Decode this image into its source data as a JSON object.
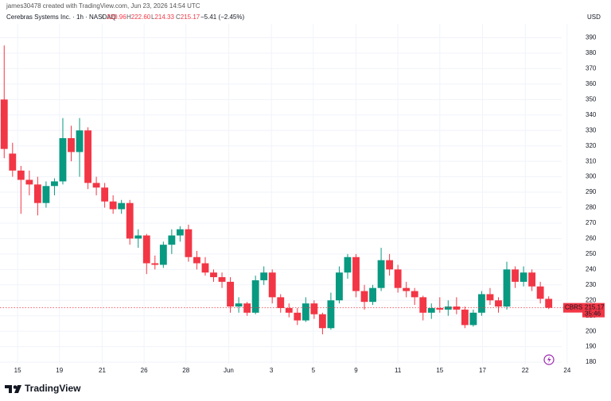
{
  "chart_data": {
    "type": "candlestick",
    "attribution": "james30478 created with TradingView.com, Jun 23, 2026 14:54 UTC",
    "instrument": "Cerebras Systems Inc. · 1h · NASDAQ",
    "ohlc_legend": [
      {
        "key": "O",
        "value": "220.96"
      },
      {
        "key": "H",
        "value": "222.60"
      },
      {
        "key": "L",
        "value": "214.33"
      },
      {
        "key": "C",
        "value": "215.17"
      }
    ],
    "change": "−5.41 (−2.45%)",
    "currency": "USD",
    "symbol_tag": "CBRS",
    "last_price": 215.17,
    "countdown": "35:46",
    "brand": "TradingView",
    "up_color": "#089981",
    "down_color": "#f23645",
    "grid": true,
    "open": [
      350,
      315,
      304,
      298,
      295,
      283,
      294,
      297,
      325,
      316,
      330,
      296,
      293,
      284,
      279,
      283,
      260,
      262,
      244,
      243,
      256,
      262,
      266,
      248,
      244,
      238,
      235,
      232,
      216,
      218,
      212,
      233,
      238,
      222,
      215,
      212,
      207,
      218,
      211,
      202,
      220,
      238,
      248,
      226,
      219,
      228,
      246,
      240,
      228,
      226,
      222,
      212,
      215,
      214,
      216,
      214,
      204,
      212,
      224,
      220,
      216,
      240,
      232,
      238,
      229,
      220.96
    ],
    "high": [
      385,
      322,
      307,
      304,
      300,
      297,
      299,
      338,
      333,
      338,
      332,
      300,
      296,
      288,
      285,
      285,
      266,
      263,
      249,
      258,
      266,
      268,
      269,
      252,
      248,
      240,
      238,
      235,
      222,
      219,
      236,
      242,
      240,
      224,
      218,
      215,
      222,
      220,
      212,
      225,
      242,
      250,
      250,
      230,
      230,
      254,
      250,
      243,
      232,
      228,
      223,
      218,
      222,
      220,
      222,
      216,
      214,
      226,
      228,
      222,
      245,
      242,
      242,
      240,
      232,
      222.6
    ],
    "low": [
      312,
      300,
      276,
      288,
      275,
      280,
      288,
      295,
      310,
      300,
      292,
      288,
      280,
      276,
      276,
      256,
      254,
      237,
      240,
      241,
      250,
      258,
      245,
      240,
      236,
      232,
      228,
      212,
      212,
      210,
      211,
      230,
      218,
      212,
      209,
      204,
      206,
      208,
      198,
      201,
      218,
      234,
      222,
      214,
      217,
      226,
      236,
      225,
      222,
      217,
      207,
      208,
      212,
      210,
      211,
      202,
      203,
      210,
      217,
      212,
      214,
      228,
      229,
      226,
      218,
      214.33
    ],
    "close": [
      318,
      304,
      298,
      295,
      283,
      294,
      297,
      325,
      316,
      330,
      296,
      293,
      284,
      279,
      283,
      260,
      262,
      244,
      243,
      256,
      262,
      266,
      248,
      244,
      238,
      235,
      232,
      216,
      218,
      212,
      233,
      238,
      222,
      215,
      212,
      207,
      218,
      211,
      202,
      220,
      238,
      248,
      226,
      219,
      228,
      246,
      240,
      228,
      226,
      222,
      212,
      215,
      214,
      216,
      214,
      204,
      212,
      224,
      220,
      216,
      240,
      232,
      238,
      229,
      221,
      215.17
    ],
    "xlim": [
      -0.5,
      67.5
    ],
    "xticks": [
      {
        "value": 1.6,
        "label": "15"
      },
      {
        "value": 6.6,
        "label": "19"
      },
      {
        "value": 11.7,
        "label": "21"
      },
      {
        "value": 16.7,
        "label": "26"
      },
      {
        "value": 21.7,
        "label": "28"
      },
      {
        "value": 26.8,
        "label": "Jun"
      },
      {
        "value": 31.9,
        "label": "3"
      },
      {
        "value": 36.9,
        "label": "5"
      },
      {
        "value": 42,
        "label": "9"
      },
      {
        "value": 47,
        "label": "11"
      },
      {
        "value": 52,
        "label": "15"
      },
      {
        "value": 57.1,
        "label": "17"
      },
      {
        "value": 62.2,
        "label": "22"
      },
      {
        "value": 67.2,
        "label": "24"
      }
    ],
    "ylim": [
      179,
      399
    ],
    "yticks": [
      180,
      190,
      200,
      210,
      220,
      230,
      240,
      250,
      260,
      270,
      280,
      290,
      300,
      310,
      320,
      330,
      340,
      350,
      360,
      370,
      380,
      390
    ]
  }
}
